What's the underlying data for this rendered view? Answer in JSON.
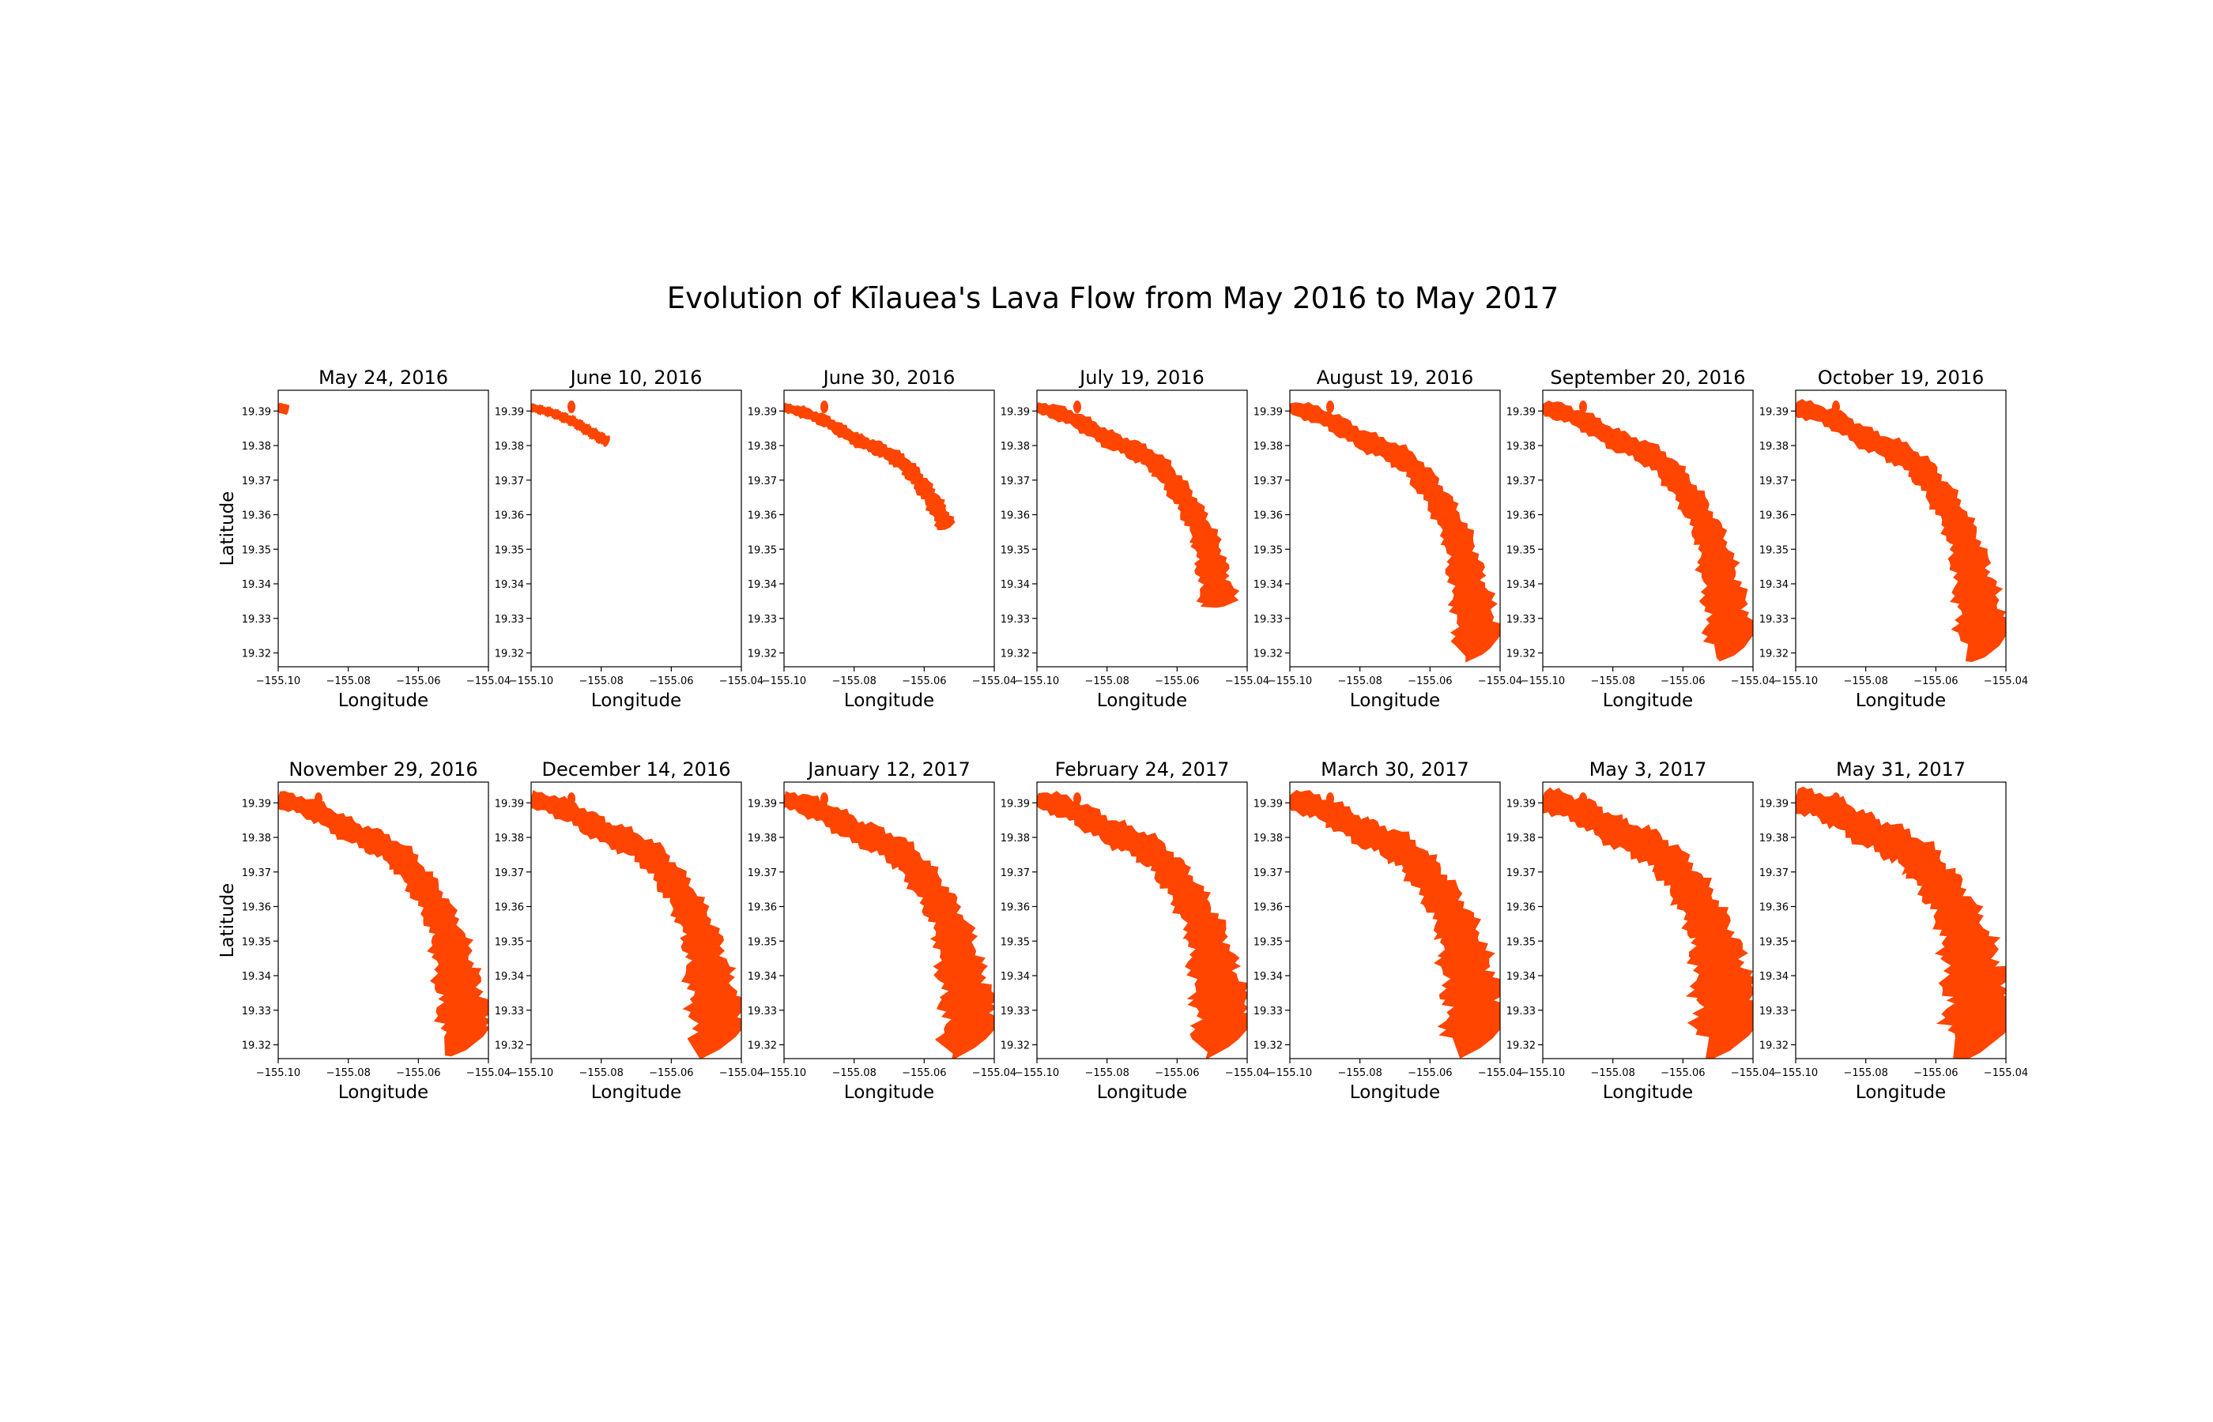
{
  "figure": {
    "title": "Evolution of Kīlauea's Lava Flow from May 2016 to May 2017",
    "flow_color": "#ff4500",
    "axis_color": "#000000"
  },
  "axes_common": {
    "xlabel": "Longitude",
    "ylabel": "Latitude",
    "xlim": [
      -155.1,
      -155.04
    ],
    "ylim": [
      19.316,
      19.396
    ],
    "xticks": [
      -155.1,
      -155.08,
      -155.06,
      -155.04
    ],
    "xtick_labels": [
      "−155.10",
      "−155.08",
      "−155.06",
      "−155.04"
    ],
    "yticks": [
      19.32,
      19.33,
      19.34,
      19.35,
      19.36,
      19.37,
      19.38,
      19.39
    ],
    "ytick_labels": [
      "19.32",
      "19.33",
      "19.34",
      "19.35",
      "19.36",
      "19.37",
      "19.38",
      "19.39"
    ]
  },
  "chart_data": {
    "type": "map",
    "grid": false,
    "flow_centerline": [
      [
        -155.1,
        19.391
      ],
      [
        -155.094,
        19.3895
      ],
      [
        -155.088,
        19.387
      ],
      [
        -155.084,
        19.3845
      ],
      [
        -155.079,
        19.3815
      ],
      [
        -155.074,
        19.3795
      ],
      [
        -155.069,
        19.377
      ],
      [
        -155.065,
        19.374
      ],
      [
        -155.061,
        19.369
      ],
      [
        -155.0575,
        19.364
      ],
      [
        -155.0545,
        19.3585
      ],
      [
        -155.052,
        19.353
      ],
      [
        -155.0505,
        19.347
      ],
      [
        -155.0495,
        19.341
      ],
      [
        -155.048,
        19.335
      ],
      [
        -155.047,
        19.329
      ],
      [
        -155.046,
        19.323
      ],
      [
        -155.044,
        19.3205
      ]
    ],
    "panels": [
      {
        "date": "May 24, 2016",
        "flow_front": 0.03,
        "max_width": 0.002
      },
      {
        "date": "June 10, 2016",
        "flow_front": 0.25,
        "max_width": 0.002
      },
      {
        "date": "June 30, 2016",
        "flow_front": 0.62,
        "max_width": 0.0024
      },
      {
        "date": "July 19, 2016",
        "flow_front": 0.86,
        "max_width": 0.0032
      },
      {
        "date": "August 19, 2016",
        "flow_front": 1.0,
        "max_width": 0.0036
      },
      {
        "date": "September 20, 2016",
        "flow_front": 1.0,
        "max_width": 0.0038
      },
      {
        "date": "October 19, 2016",
        "flow_front": 1.0,
        "max_width": 0.004
      },
      {
        "date": "November 29, 2016",
        "flow_front": 1.0,
        "max_width": 0.0042
      },
      {
        "date": "December 14, 2016",
        "flow_front": 1.0,
        "max_width": 0.0044
      },
      {
        "date": "January 12, 2017",
        "flow_front": 1.0,
        "max_width": 0.0046
      },
      {
        "date": "February 24, 2017",
        "flow_front": 1.0,
        "max_width": 0.0048
      },
      {
        "date": "March 30, 2017",
        "flow_front": 1.0,
        "max_width": 0.0052
      },
      {
        "date": "May 3, 2017",
        "flow_front": 1.0,
        "max_width": 0.0056
      },
      {
        "date": "May 31, 2017",
        "flow_front": 1.0,
        "max_width": 0.006
      }
    ]
  }
}
